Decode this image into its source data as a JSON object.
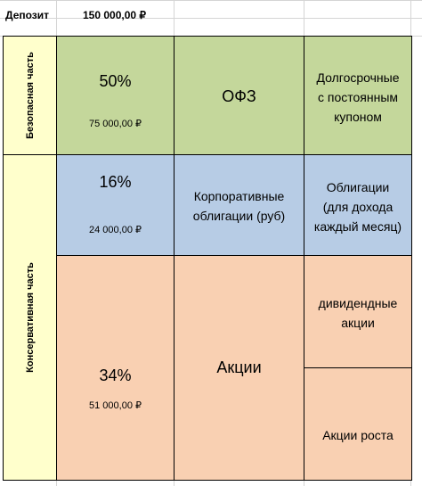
{
  "header": {
    "deposit_label": "Депозит",
    "deposit_value": "150 000,00 ₽"
  },
  "rows": {
    "safe": {
      "side_label": "Безопасная часть",
      "percent": "50%",
      "amount": "75 000,00 ₽",
      "instrument": "ОФЗ",
      "description": [
        "Долгосрочные",
        "с постоянным",
        "купоном"
      ]
    },
    "conservative_label": "Консервативная часть",
    "bonds": {
      "percent": "16%",
      "amount": "24 000,00 ₽",
      "instrument": [
        "Корпоративные",
        "облигации (руб)"
      ],
      "description": [
        "Облигации",
        "(для дохода",
        "каждый месяц)"
      ]
    },
    "stocks": {
      "percent": "34%",
      "amount": "51 000,00 ₽",
      "instrument": "Акции",
      "description_top": [
        "дивидендные",
        "акции"
      ],
      "description_bottom": "Акции роста"
    }
  },
  "colors": {
    "green": "#c4d79b",
    "blue": "#b7cce5",
    "orange": "#f9d0b2",
    "yellow": "#ffffcc"
  }
}
